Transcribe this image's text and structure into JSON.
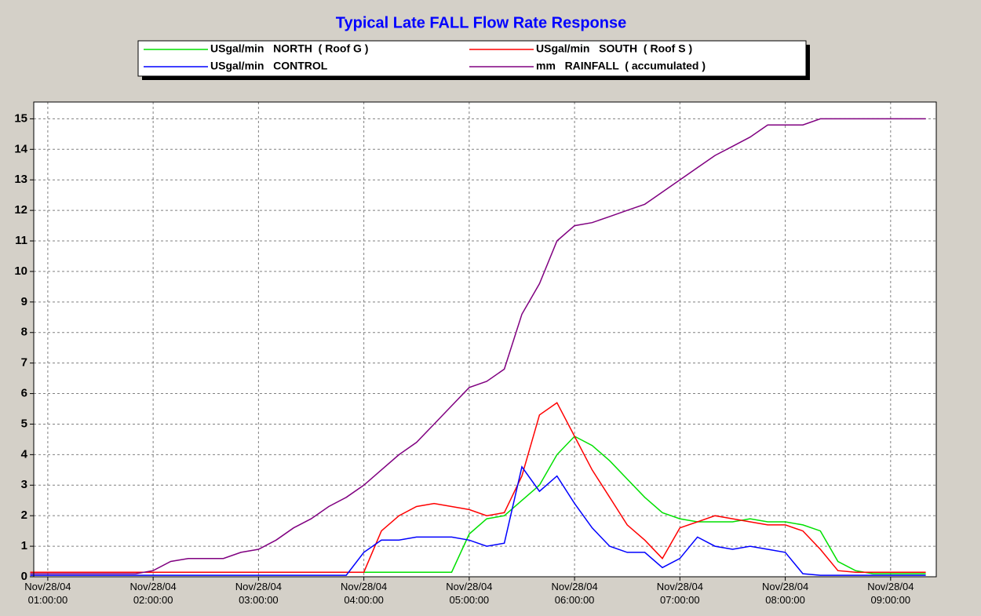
{
  "chart_data": {
    "type": "line",
    "title": "Typical Late FALL Flow Rate Response",
    "legend": "top",
    "grid": true,
    "x": [
      "Nov/28/04 00:50:00",
      "Nov/28/04 01:00:00",
      "Nov/28/04 01:10:00",
      "Nov/28/04 01:20:00",
      "Nov/28/04 01:30:00",
      "Nov/28/04 01:40:00",
      "Nov/28/04 01:50:00",
      "Nov/28/04 02:00:00",
      "Nov/28/04 02:10:00",
      "Nov/28/04 02:20:00",
      "Nov/28/04 02:30:00",
      "Nov/28/04 02:40:00",
      "Nov/28/04 02:50:00",
      "Nov/28/04 03:00:00",
      "Nov/28/04 03:10:00",
      "Nov/28/04 03:20:00",
      "Nov/28/04 03:30:00",
      "Nov/28/04 03:40:00",
      "Nov/28/04 03:50:00",
      "Nov/28/04 04:00:00",
      "Nov/28/04 04:10:00",
      "Nov/28/04 04:20:00",
      "Nov/28/04 04:30:00",
      "Nov/28/04 04:40:00",
      "Nov/28/04 04:50:00",
      "Nov/28/04 05:00:00",
      "Nov/28/04 05:10:00",
      "Nov/28/04 05:20:00",
      "Nov/28/04 05:30:00",
      "Nov/28/04 05:40:00",
      "Nov/28/04 05:50:00",
      "Nov/28/04 06:00:00",
      "Nov/28/04 06:10:00",
      "Nov/28/04 06:20:00",
      "Nov/28/04 06:30:00",
      "Nov/28/04 06:40:00",
      "Nov/28/04 06:50:00",
      "Nov/28/04 07:00:00",
      "Nov/28/04 07:10:00",
      "Nov/28/04 07:20:00",
      "Nov/28/04 07:30:00",
      "Nov/28/04 07:40:00",
      "Nov/28/04 07:50:00",
      "Nov/28/04 08:00:00",
      "Nov/28/04 08:10:00",
      "Nov/28/04 08:20:00",
      "Nov/28/04 08:30:00",
      "Nov/28/04 08:40:00",
      "Nov/28/04 08:50:00",
      "Nov/28/04 09:00:00",
      "Nov/28/04 09:10:00",
      "Nov/28/04 09:20:00"
    ],
    "xlim": [
      "Nov/28/04 00:52:00",
      "Nov/28/04 09:26:00"
    ],
    "xticks": [
      "Nov/28/04 01:00:00",
      "Nov/28/04 02:00:00",
      "Nov/28/04 03:00:00",
      "Nov/28/04 04:00:00",
      "Nov/28/04 05:00:00",
      "Nov/28/04 06:00:00",
      "Nov/28/04 07:00:00",
      "Nov/28/04 08:00:00",
      "Nov/28/04 09:00:00"
    ],
    "ylim": [
      0,
      15.55
    ],
    "yticks": [
      0,
      1,
      2,
      3,
      4,
      5,
      6,
      7,
      8,
      9,
      10,
      11,
      12,
      13,
      14,
      15
    ],
    "series": [
      {
        "name": "USgal/min   NORTH  ( Roof G )",
        "color": "#00e000",
        "values": [
          0.15,
          0.15,
          0.15,
          0.15,
          0.15,
          0.15,
          0.15,
          0.15,
          0.15,
          0.15,
          0.15,
          0.15,
          0.15,
          0.15,
          0.15,
          0.15,
          0.15,
          0.15,
          0.15,
          0.15,
          0.15,
          0.15,
          0.15,
          0.15,
          0.15,
          1.4,
          1.9,
          2.0,
          2.5,
          3.0,
          4.0,
          4.6,
          4.3,
          3.8,
          3.2,
          2.6,
          2.1,
          1.9,
          1.8,
          1.8,
          1.8,
          1.9,
          1.8,
          1.8,
          1.7,
          1.5,
          0.5,
          0.2,
          0.1,
          0.1,
          0.1,
          0.1
        ]
      },
      {
        "name": "USgal/min   SOUTH  ( Roof S )",
        "color": "#ff0000",
        "values": [
          0.15,
          0.15,
          0.15,
          0.15,
          0.15,
          0.15,
          0.15,
          0.15,
          0.15,
          0.15,
          0.15,
          0.15,
          0.15,
          0.15,
          0.15,
          0.15,
          0.15,
          0.15,
          0.15,
          0.15,
          1.5,
          2.0,
          2.3,
          2.4,
          2.3,
          2.2,
          2.0,
          2.1,
          3.3,
          5.3,
          5.7,
          4.6,
          3.5,
          2.6,
          1.7,
          1.2,
          0.6,
          1.6,
          1.8,
          2.0,
          1.9,
          1.8,
          1.7,
          1.7,
          1.5,
          0.9,
          0.2,
          0.15,
          0.15,
          0.15,
          0.15,
          0.15
        ]
      },
      {
        "name": "USgal/min   CONTROL",
        "color": "#0000ff",
        "values": [
          0.05,
          0.05,
          0.05,
          0.05,
          0.05,
          0.05,
          0.05,
          0.05,
          0.05,
          0.05,
          0.05,
          0.05,
          0.05,
          0.05,
          0.05,
          0.05,
          0.05,
          0.05,
          0.05,
          0.8,
          1.2,
          1.2,
          1.3,
          1.3,
          1.3,
          1.2,
          1.0,
          1.1,
          3.6,
          2.8,
          3.3,
          2.4,
          1.6,
          1.0,
          0.8,
          0.8,
          0.3,
          0.6,
          1.3,
          1.0,
          0.9,
          1.0,
          0.9,
          0.8,
          0.1,
          0.05,
          0.05,
          0.05,
          0.05,
          0.05,
          0.05,
          0.05
        ]
      },
      {
        "name": "mm   RAINFALL  ( accumulated )",
        "color": "#800080",
        "values": [
          0.1,
          0.1,
          0.1,
          0.1,
          0.1,
          0.1,
          0.1,
          0.2,
          0.5,
          0.6,
          0.6,
          0.6,
          0.8,
          0.9,
          1.2,
          1.6,
          1.9,
          2.3,
          2.6,
          3.0,
          3.5,
          4.0,
          4.4,
          5.0,
          5.6,
          6.2,
          6.4,
          6.8,
          8.6,
          9.6,
          11.0,
          11.5,
          11.6,
          11.8,
          12.0,
          12.2,
          12.6,
          13.0,
          13.4,
          13.8,
          14.1,
          14.4,
          14.8,
          14.8,
          14.8,
          15.0,
          15.0,
          15.0,
          15.0,
          15.0,
          15.0,
          15.0
        ]
      }
    ]
  }
}
